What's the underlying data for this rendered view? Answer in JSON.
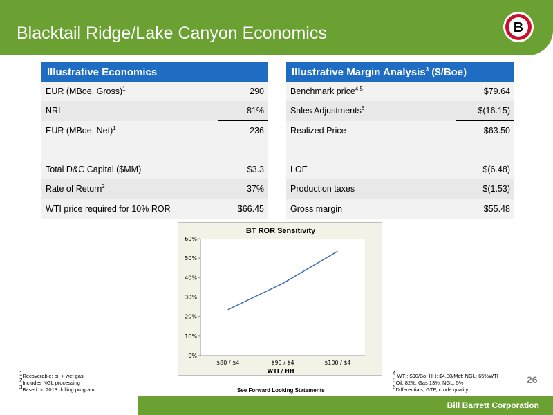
{
  "slide": {
    "title": "Blacktail Ridge/Lake Canyon Economics",
    "logo_letter": "B",
    "page_number": "26",
    "forward_looking": "See Forward Looking Statements",
    "company": "Bill Barrett Corporation"
  },
  "economics": {
    "header": "Illustrative Economics",
    "rows": [
      {
        "label": "EUR (MBoe, Gross)",
        "sup": "1",
        "value": "290"
      },
      {
        "label": "NRI",
        "sup": "",
        "value": "81%"
      },
      {
        "label": "EUR (MBoe, Net)",
        "sup": "1",
        "value": "236"
      },
      {
        "label": "",
        "sup": "",
        "value": ""
      },
      {
        "label": "Total D&C Capital ($MM)",
        "sup": "",
        "value": "$3.3"
      },
      {
        "label": "Rate of Return",
        "sup": "2",
        "value": "37%"
      },
      {
        "label": "WTI price required for 10% ROR",
        "sup": "",
        "value": "$66.45"
      }
    ]
  },
  "margin": {
    "header": "Illustrative Margin Analysis",
    "header_sup": "3",
    "header_suffix": " ($/Boe)",
    "rows": [
      {
        "label": "Benchmark price",
        "sup": "4,5",
        "value": "$79.64"
      },
      {
        "label": "Sales Adjustments",
        "sup": "6",
        "value": "$(16.15)"
      },
      {
        "label": "Realized Price",
        "sup": "",
        "value": "$63.50"
      },
      {
        "label": "",
        "sup": "",
        "value": ""
      },
      {
        "label": "LOE",
        "sup": "",
        "value": "$(6.48)"
      },
      {
        "label": "Production taxes",
        "sup": "",
        "value": "$(1.53)"
      },
      {
        "label": "Gross margin",
        "sup": "",
        "value": "$55.48"
      }
    ]
  },
  "footnotes_left": [
    {
      "sup": "1",
      "text": "Recoverable; oil + wet gas"
    },
    {
      "sup": "2",
      "text": "Includes NGL processing"
    },
    {
      "sup": "3",
      "text": "Based on 2013 drilling program"
    }
  ],
  "footnotes_right": [
    {
      "sup": "4",
      "text": " WTI: $90/Bo; HH: $4.00/Mcf; NGL: 65%WTI"
    },
    {
      "sup": "5",
      "text": "Oil: 82%; Gas 13%; NGL: 5%"
    },
    {
      "sup": "6",
      "text": "Differentials, GTP, crude quality"
    }
  ],
  "colors": {
    "brand_green": "#6aa132",
    "table_header_blue": "#1f6dc2",
    "line_blue": "#3f6fb0"
  },
  "chart_data": {
    "type": "line",
    "title": "BT ROR Sensitivity",
    "xlabel": "WTI / HH",
    "ylabel": "",
    "categories": [
      "$80 / $4",
      "$90 / $4",
      "$100 / $4"
    ],
    "series": [
      {
        "values": [
          0.235,
          0.37,
          0.535
        ]
      }
    ],
    "ylim": [
      0,
      0.6
    ],
    "yticks": [
      "0%",
      "10%",
      "20%",
      "30%",
      "40%",
      "50%",
      "60%"
    ],
    "grid": false,
    "legend": "none"
  }
}
